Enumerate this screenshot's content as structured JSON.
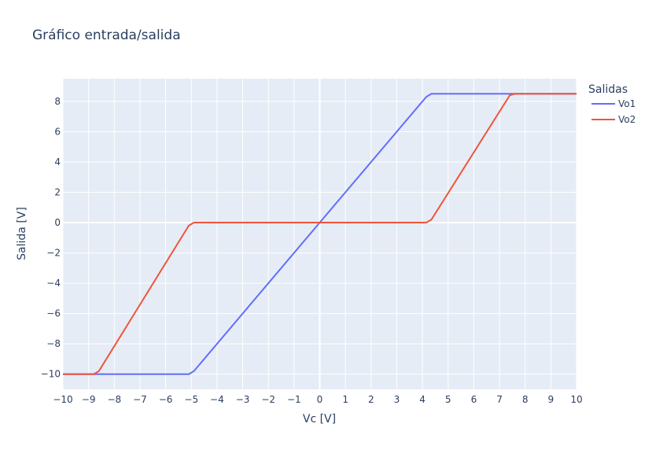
{
  "chart_data": {
    "type": "line",
    "title": "Gráfico entrada/salida",
    "xlabel": "Vc [V]",
    "ylabel": "Salida [V]",
    "xlim": [
      -10,
      10
    ],
    "ylim": [
      -11,
      9.5
    ],
    "xticks": [
      -10,
      -9,
      -8,
      -7,
      -6,
      -5,
      -4,
      -3,
      -2,
      -1,
      0,
      1,
      2,
      3,
      4,
      5,
      6,
      7,
      8,
      9,
      10
    ],
    "xtick_labels": [
      "−10",
      "−9",
      "−8",
      "−7",
      "−6",
      "−5",
      "−4",
      "−3",
      "−2",
      "−1",
      "0",
      "1",
      "2",
      "3",
      "4",
      "5",
      "6",
      "7",
      "8",
      "9",
      "10"
    ],
    "yticks": [
      -10,
      -8,
      -6,
      -4,
      -2,
      0,
      2,
      4,
      6,
      8
    ],
    "ytick_labels": [
      "−10",
      "−8",
      "−6",
      "−4",
      "−2",
      "0",
      "2",
      "4",
      "6",
      "8"
    ],
    "grid": true,
    "legend": {
      "title": "Salidas",
      "placement": "top-right"
    },
    "series": [
      {
        "name": "Vo1",
        "color": "#636efa",
        "x": [
          -10,
          -5.1,
          -4.9,
          0,
          4.15,
          4.35,
          7.4,
          10
        ],
        "y": [
          -10,
          -10,
          -9.8,
          0,
          8.3,
          8.5,
          8.5,
          8.5
        ]
      },
      {
        "name": "Vo2",
        "color": "#ef553b",
        "x": [
          -10,
          -8.8,
          -8.6,
          -5.1,
          -4.9,
          4.15,
          4.35,
          7.4,
          7.6,
          10
        ],
        "y": [
          -10,
          -10,
          -9.8,
          -0.2,
          0,
          0,
          0.2,
          8.4,
          8.5,
          8.5
        ]
      }
    ]
  }
}
